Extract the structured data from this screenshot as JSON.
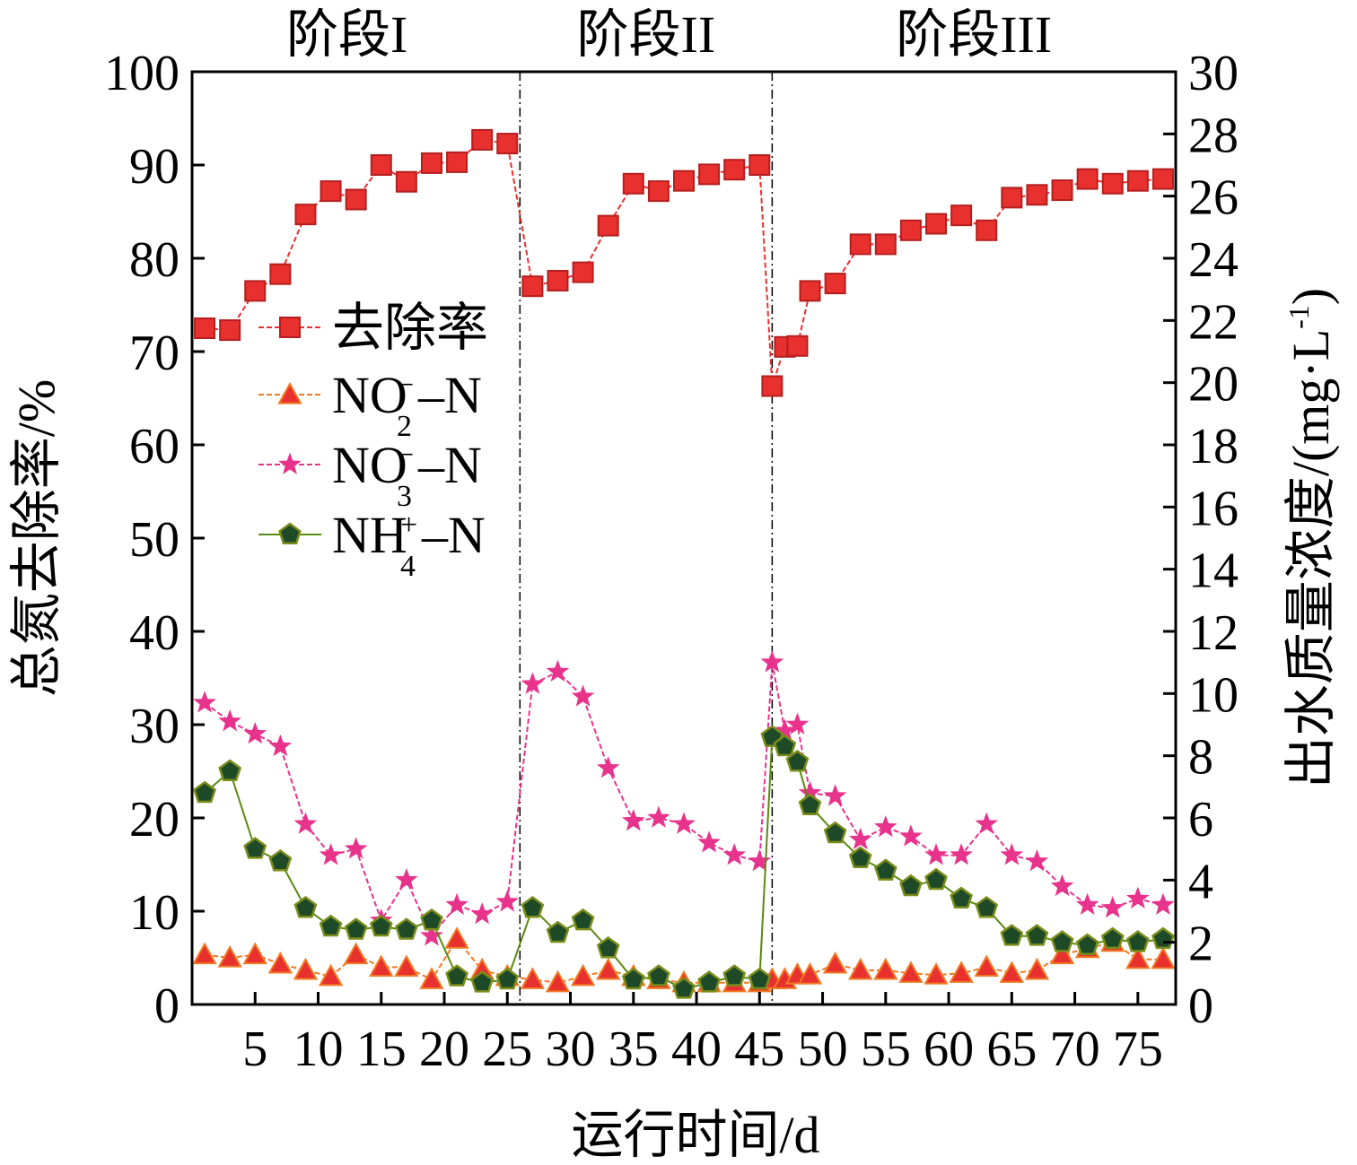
{
  "chart_data": {
    "type": "line",
    "stages": [
      {
        "label": "阶段I",
        "x_end": 26
      },
      {
        "label": "阶段II",
        "x_end": 46
      },
      {
        "label": "阶段III"
      }
    ],
    "xlabel": "运行时间/d",
    "ylabel_left": "总氮去除率/%",
    "ylabel_right": "出水质量浓度/(mg·L",
    "ylabel_right_sup": "-1",
    "ylabel_right_close": ")",
    "xlim": [
      0,
      78
    ],
    "ylim_left": [
      0,
      100
    ],
    "ylim_right": [
      0,
      30
    ],
    "x_ticks": [
      5,
      10,
      15,
      20,
      25,
      30,
      35,
      40,
      45,
      50,
      55,
      60,
      65,
      70,
      75
    ],
    "y_ticks_left": [
      0,
      10,
      20,
      30,
      40,
      50,
      60,
      70,
      80,
      90,
      100
    ],
    "y_ticks_right": [
      0,
      2,
      4,
      6,
      8,
      10,
      12,
      14,
      16,
      18,
      20,
      22,
      24,
      26,
      28,
      30
    ],
    "legend_position": "middle-left",
    "series": [
      {
        "name": "去除率",
        "axis": "left",
        "marker": "square",
        "color": "#e8312e",
        "legend": {
          "main": "去除率"
        },
        "x": [
          1,
          3,
          5,
          7,
          9,
          11,
          13,
          15,
          17,
          19,
          21,
          23,
          25,
          27,
          29,
          31,
          33,
          35,
          37,
          39,
          41,
          43,
          45,
          46,
          47,
          48,
          49,
          51,
          53,
          55,
          57,
          59,
          61,
          63,
          65,
          67,
          69,
          71,
          73,
          75,
          77
        ],
        "values": [
          72.5,
          72.3,
          76.5,
          78.3,
          84.7,
          87.2,
          86.3,
          90.0,
          88.2,
          90.2,
          90.3,
          92.7,
          92.3,
          77.0,
          77.6,
          78.5,
          83.5,
          88.0,
          87.2,
          88.3,
          89.0,
          89.5,
          90.0,
          66.3,
          70.5,
          70.6,
          76.5,
          77.3,
          81.5,
          81.5,
          83.0,
          83.7,
          84.6,
          83.0,
          86.5,
          86.8,
          87.3,
          88.5,
          88.0,
          88.3,
          88.5
        ]
      },
      {
        "name": "NO2--N",
        "axis": "right",
        "marker": "triangle",
        "color": "#f07a23",
        "legend": {
          "main": "NO",
          "sub": "2",
          "sup": "−",
          "tail": "–N"
        },
        "x": [
          1,
          3,
          5,
          7,
          9,
          11,
          13,
          15,
          17,
          19,
          21,
          23,
          25,
          27,
          29,
          31,
          33,
          35,
          37,
          39,
          41,
          43,
          45,
          46,
          47,
          48,
          49,
          51,
          53,
          55,
          57,
          59,
          61,
          63,
          65,
          67,
          69,
          71,
          73,
          75,
          77
        ],
        "values": [
          1.6,
          1.5,
          1.6,
          1.3,
          1.1,
          0.9,
          1.6,
          1.2,
          1.2,
          0.8,
          2.1,
          1.1,
          0.9,
          0.8,
          0.7,
          0.9,
          1.1,
          0.9,
          0.8,
          0.7,
          0.7,
          0.7,
          0.7,
          0.8,
          0.8,
          0.95,
          0.95,
          1.3,
          1.1,
          1.1,
          1.0,
          0.95,
          1.0,
          1.2,
          1.0,
          1.1,
          1.6,
          1.8,
          2.0,
          1.45,
          1.45
        ]
      },
      {
        "name": "NO3--N",
        "axis": "right",
        "marker": "star",
        "color": "#e8338c",
        "legend": {
          "main": "NO",
          "sub": "3",
          "sup": "−",
          "tail": "–N"
        },
        "x": [
          1,
          3,
          5,
          7,
          9,
          11,
          13,
          15,
          17,
          19,
          21,
          23,
          25,
          27,
          29,
          31,
          33,
          35,
          37,
          39,
          41,
          43,
          45,
          46,
          47,
          48,
          49,
          51,
          53,
          55,
          57,
          59,
          61,
          63,
          65,
          67,
          69,
          71,
          73,
          75,
          77
        ],
        "values": [
          9.7,
          9.1,
          8.7,
          8.3,
          5.8,
          4.8,
          5.0,
          2.7,
          4.0,
          2.2,
          3.2,
          2.9,
          3.3,
          10.3,
          10.7,
          9.9,
          7.6,
          5.9,
          6.0,
          5.8,
          5.2,
          4.8,
          4.6,
          11.0,
          8.8,
          9.0,
          6.8,
          6.7,
          5.3,
          5.7,
          5.4,
          4.8,
          4.8,
          5.8,
          4.8,
          4.6,
          3.8,
          3.2,
          3.1,
          3.4,
          3.2
        ]
      },
      {
        "name": "NH4+-N",
        "axis": "right",
        "marker": "pentagon",
        "color": "#7a8c1a",
        "legend": {
          "main": "NH",
          "sub": "4",
          "sup": "+",
          "tail": "–N"
        },
        "x": [
          1,
          3,
          5,
          7,
          9,
          11,
          13,
          15,
          17,
          19,
          21,
          23,
          25,
          27,
          29,
          31,
          33,
          35,
          37,
          39,
          41,
          43,
          45,
          46,
          47,
          48,
          49,
          51,
          53,
          55,
          57,
          59,
          61,
          63,
          65,
          67,
          69,
          71,
          73,
          75,
          77
        ],
        "values": [
          6.8,
          7.5,
          5.0,
          4.6,
          3.1,
          2.5,
          2.4,
          2.5,
          2.4,
          2.7,
          0.9,
          0.7,
          0.8,
          3.1,
          2.3,
          2.7,
          1.8,
          0.8,
          0.9,
          0.5,
          0.7,
          0.9,
          0.8,
          8.6,
          8.3,
          7.8,
          6.4,
          5.5,
          4.7,
          4.3,
          3.8,
          4.0,
          3.4,
          3.1,
          2.2,
          2.2,
          2.0,
          1.9,
          2.1,
          2.0,
          2.1
        ]
      }
    ]
  }
}
